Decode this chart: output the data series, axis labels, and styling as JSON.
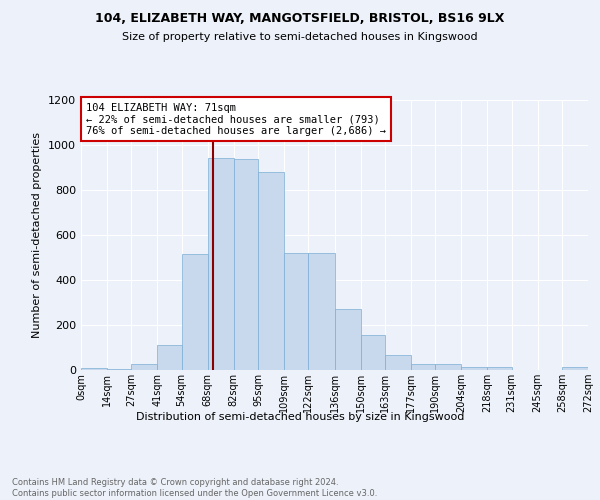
{
  "title1": "104, ELIZABETH WAY, MANGOTSFIELD, BRISTOL, BS16 9LX",
  "title2": "Size of property relative to semi-detached houses in Kingswood",
  "xlabel": "Distribution of semi-detached houses by size in Kingswood",
  "ylabel": "Number of semi-detached properties",
  "footer": "Contains HM Land Registry data © Crown copyright and database right 2024.\nContains public sector information licensed under the Open Government Licence v3.0.",
  "bin_edges": [
    0,
    14,
    27,
    41,
    54,
    68,
    82,
    95,
    109,
    122,
    136,
    150,
    163,
    177,
    190,
    204,
    218,
    231,
    245,
    258,
    272
  ],
  "bin_labels": [
    "0sqm",
    "14sqm",
    "27sqm",
    "41sqm",
    "54sqm",
    "68sqm",
    "82sqm",
    "95sqm",
    "109sqm",
    "122sqm",
    "136sqm",
    "150sqm",
    "163sqm",
    "177sqm",
    "190sqm",
    "204sqm",
    "218sqm",
    "231sqm",
    "245sqm",
    "258sqm",
    "272sqm"
  ],
  "bar_heights": [
    10,
    5,
    28,
    113,
    517,
    944,
    938,
    879,
    522,
    521,
    271,
    154,
    68,
    25,
    25,
    15,
    12,
    2,
    0,
    12
  ],
  "bar_color": "#c8d9ee",
  "bar_edge_color": "#7aaed4",
  "vline_x": 71,
  "vline_color": "#8b0000",
  "annotation_text": "104 ELIZABETH WAY: 71sqm\n← 22% of semi-detached houses are smaller (793)\n76% of semi-detached houses are larger (2,686) →",
  "annotation_box_color": "#ffffff",
  "annotation_box_edge": "#cc0000",
  "ylim": [
    0,
    1200
  ],
  "background_color": "#edf1f9"
}
